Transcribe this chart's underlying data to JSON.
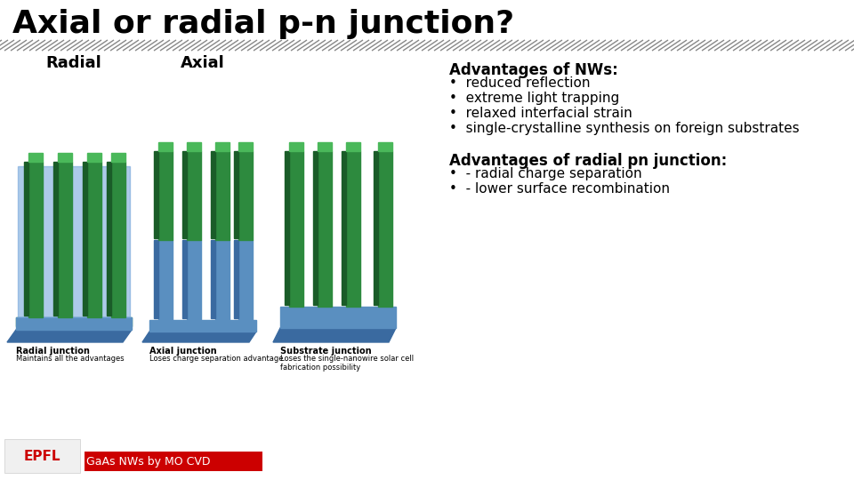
{
  "title": "Axial or radial p-n junction?",
  "title_fontsize": 26,
  "title_color": "#000000",
  "background_color": "#ffffff",
  "stripe_color": "#888888",
  "radial_label": "Radial",
  "axial_label": "Axial",
  "label_fontsize": 13,
  "advantages_nw_title": "Advantages of NWs:",
  "advantages_nw_bullets": [
    "reduced reflection",
    "extreme light trapping",
    "relaxed interfacial strain",
    "single-crystalline synthesis on foreign substrates"
  ],
  "advantages_radial_title": "Advantages of radial pn junction:",
  "advantages_radial_bullets": [
    "- radial charge separation",
    "- lower surface recombination"
  ],
  "footer_text": "GaAs NWs by MO CVD",
  "footer_bg": "#cc0000",
  "footer_fg": "#ffffff",
  "text_fontsize": 11,
  "bold_title_fontsize": 12,
  "panel_captions": [
    [
      "Radial junction",
      "Maintains all the advantages"
    ],
    [
      "Axial junction",
      "Loses charge separation advantage"
    ],
    [
      "Substrate junction",
      "Loses the single-nanowire solar cell\nfabrication possibility"
    ]
  ]
}
